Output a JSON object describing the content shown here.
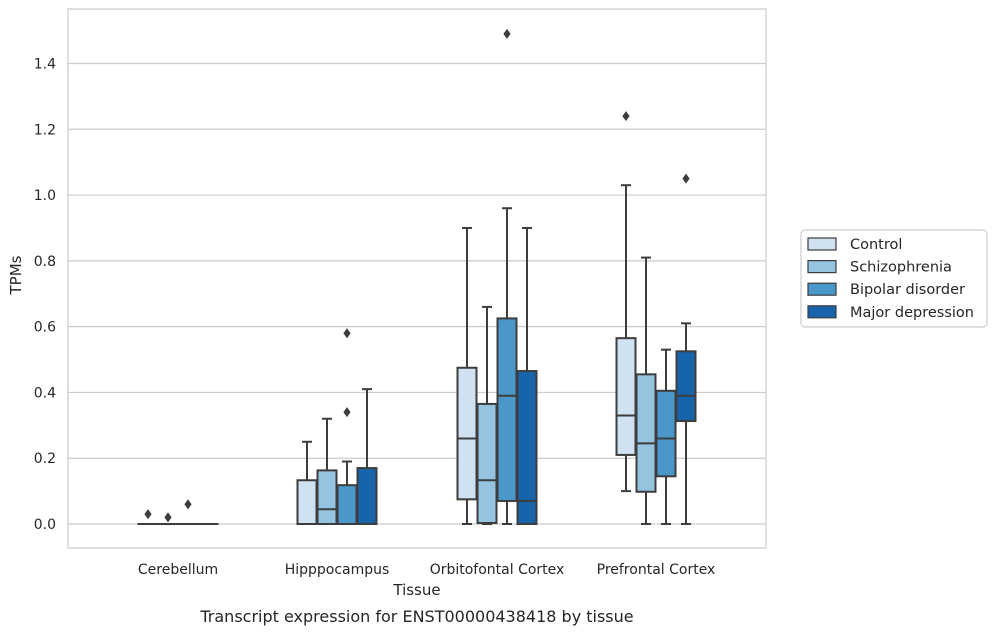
{
  "chart_data": {
    "type": "box",
    "title": "",
    "caption": "Transcript expression for ENST00000438418 by tissue",
    "xlabel": "Tissue",
    "ylabel": "TPMs",
    "ylim": [
      -0.07,
      1.57
    ],
    "yticks": [
      "0.0",
      "0.2",
      "0.4",
      "0.6",
      "0.8",
      "1.0",
      "1.2",
      "1.4"
    ],
    "grid": "horizontal",
    "legend_position": "right",
    "categories": [
      "Cerebellum",
      "Hipppocampus",
      "Orbitofontal Cortex",
      "Prefrontal Cortex"
    ],
    "series": [
      {
        "name": "Control",
        "color": "#d0e1f2",
        "boxes": [
          {
            "whislo": 0.0,
            "q1": 0.0,
            "med": 0.0,
            "q3": 0.0,
            "whishi": 0.0,
            "fliers": [
              0.03
            ]
          },
          {
            "whislo": 0.0,
            "q1": 0.0,
            "med": 0.0,
            "q3": 0.133,
            "whishi": 0.25,
            "fliers": []
          },
          {
            "whislo": 0.0,
            "q1": 0.075,
            "med": 0.26,
            "q3": 0.475,
            "whishi": 0.9,
            "fliers": []
          },
          {
            "whislo": 0.1,
            "q1": 0.21,
            "med": 0.33,
            "q3": 0.565,
            "whishi": 1.03,
            "fliers": [
              1.24
            ]
          }
        ]
      },
      {
        "name": "Schizophrenia",
        "color": "#94c4df",
        "boxes": [
          {
            "whislo": 0.0,
            "q1": 0.0,
            "med": 0.0,
            "q3": 0.0,
            "whishi": 0.0,
            "fliers": [
              0.02
            ]
          },
          {
            "whislo": 0.0,
            "q1": 0.0,
            "med": 0.045,
            "q3": 0.163,
            "whishi": 0.32,
            "fliers": []
          },
          {
            "whislo": 0.0,
            "q1": 0.003,
            "med": 0.133,
            "q3": 0.365,
            "whishi": 0.66,
            "fliers": []
          },
          {
            "whislo": 0.0,
            "q1": 0.098,
            "med": 0.245,
            "q3": 0.455,
            "whishi": 0.81,
            "fliers": []
          }
        ]
      },
      {
        "name": "Bipolar disorder",
        "color": "#4a98c9",
        "boxes": [
          {
            "whislo": 0.0,
            "q1": 0.0,
            "med": 0.0,
            "q3": 0.0,
            "whishi": 0.0,
            "fliers": [
              0.06
            ]
          },
          {
            "whislo": 0.0,
            "q1": 0.0,
            "med": 0.0,
            "q3": 0.118,
            "whishi": 0.19,
            "fliers": [
              0.34,
              0.58
            ]
          },
          {
            "whislo": 0.0,
            "q1": 0.07,
            "med": 0.39,
            "q3": 0.625,
            "whishi": 0.96,
            "fliers": [
              1.49
            ]
          },
          {
            "whislo": 0.0,
            "q1": 0.145,
            "med": 0.26,
            "q3": 0.405,
            "whishi": 0.53,
            "fliers": []
          }
        ]
      },
      {
        "name": "Major depression",
        "color": "#1764ab",
        "boxes": [
          {
            "whislo": 0.0,
            "q1": 0.0,
            "med": 0.0,
            "q3": 0.0,
            "whishi": 0.0,
            "fliers": []
          },
          {
            "whislo": 0.0,
            "q1": 0.0,
            "med": 0.0,
            "q3": 0.17,
            "whishi": 0.41,
            "fliers": []
          },
          {
            "whislo": 0.0,
            "q1": 0.0,
            "med": 0.07,
            "q3": 0.465,
            "whishi": 0.9,
            "fliers": []
          },
          {
            "whislo": 0.0,
            "q1": 0.313,
            "med": 0.39,
            "q3": 0.525,
            "whishi": 0.61,
            "fliers": [
              1.05
            ]
          }
        ]
      }
    ]
  }
}
